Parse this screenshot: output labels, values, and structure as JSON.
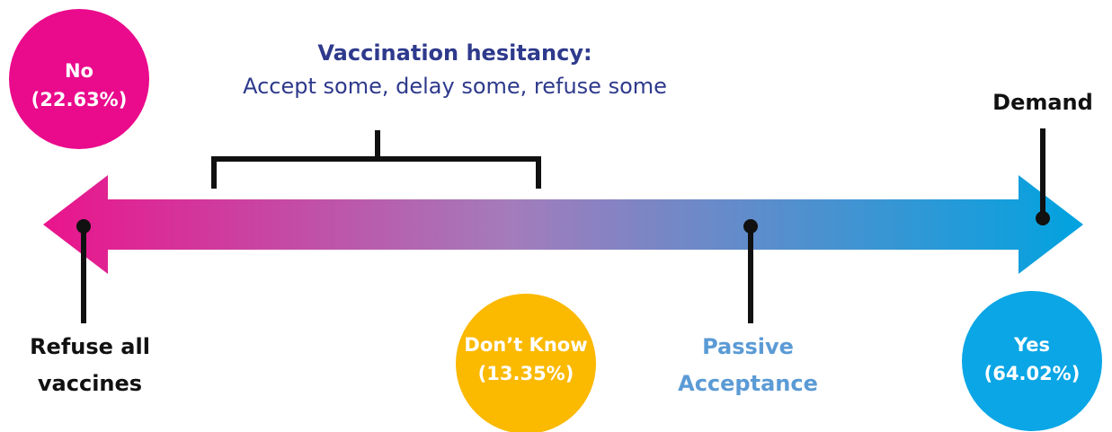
{
  "heading": {
    "title": "Vaccination hesitancy:",
    "subtitle": "Accept some, delay some, refuse some"
  },
  "circles": {
    "no": {
      "label": "No",
      "share": "(22.63%)"
    },
    "dont_know": {
      "label": "Don’t Know",
      "share": "(13.35%)"
    },
    "yes": {
      "label": "Yes",
      "share": "(64.02%)"
    }
  },
  "markers": {
    "refuse": [
      "Refuse all",
      "vaccines"
    ],
    "passive": [
      "Passive",
      "Acceptance"
    ],
    "demand": "Demand"
  }
}
